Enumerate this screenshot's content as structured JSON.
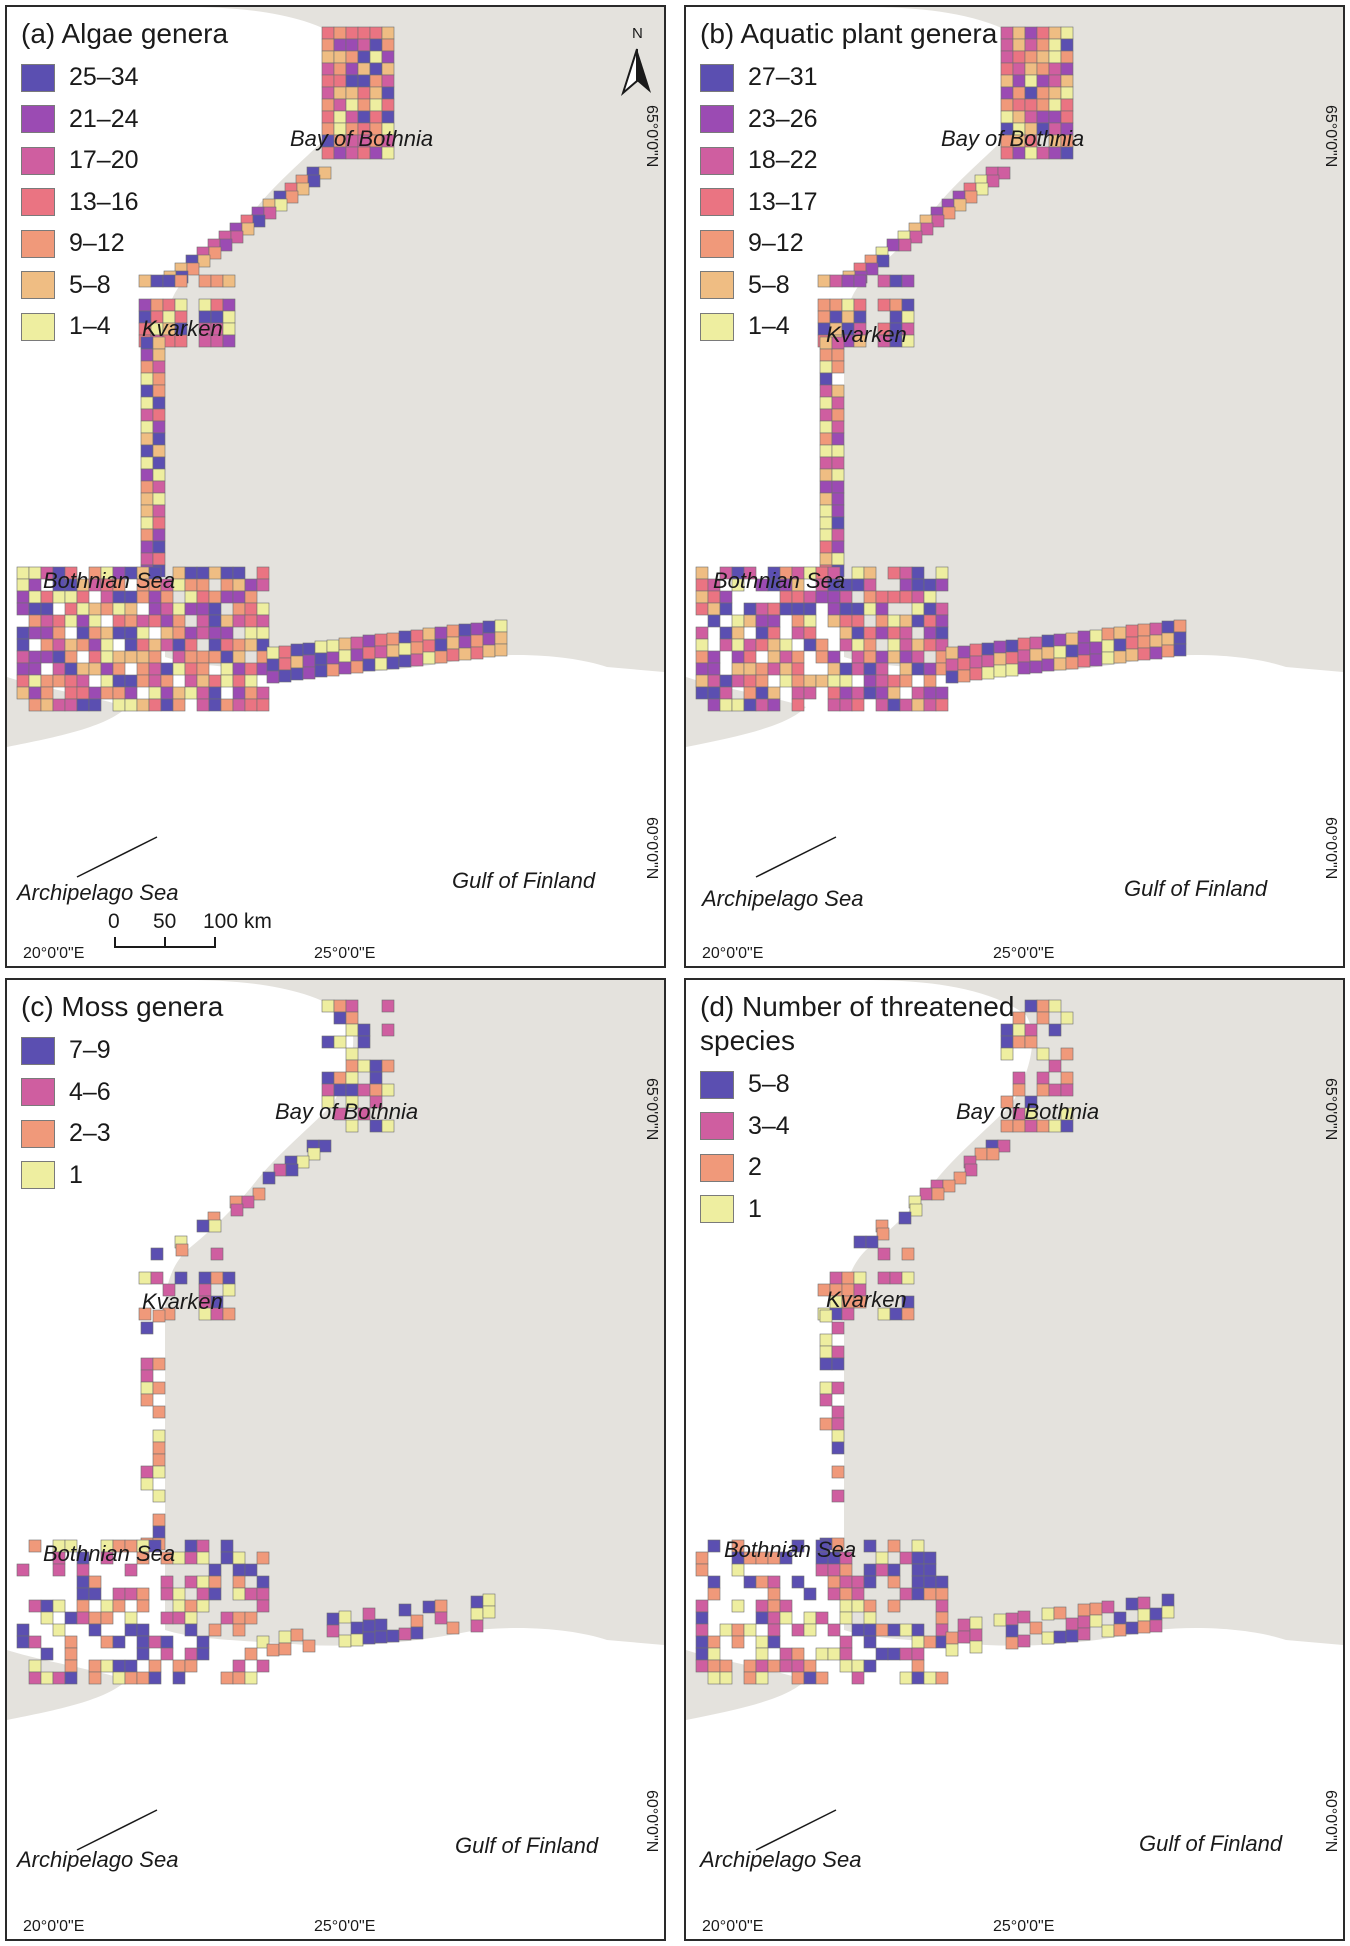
{
  "colors": {
    "land": "#e4e2dd",
    "water": "#ffffff",
    "cell_border": "#6e6e6e",
    "frame": "#2a2a2a"
  },
  "panels": [
    {
      "title": "(a) Algae genera",
      "legend": [
        {
          "label": "25–34",
          "color": "#5b4fb1"
        },
        {
          "label": "21–24",
          "color": "#9b4bb3"
        },
        {
          "label": "17–20",
          "color": "#cf5ea0"
        },
        {
          "label": "13–16",
          "color": "#ea7482"
        },
        {
          "label": "9–12",
          "color": "#f0997a"
        },
        {
          "label": "5–8",
          "color": "#efbd83"
        },
        {
          "label": "1–4",
          "color": "#eeeea0"
        }
      ],
      "labels": {
        "bay": "Bay of\nBothnia",
        "kvarken": "Kvarken",
        "bothnian": "Bothnian\nSea",
        "archipelago": "Archipelago\nSea",
        "gulf": "Gulf of Finland"
      },
      "coords": {
        "west": "20°0'0\"E",
        "east": "25°0'0\"E",
        "north": "65°0'0\"N",
        "south": "60°0'0\"N"
      },
      "scale_bar": {
        "ticks": [
          "0",
          "50",
          "100 km"
        ]
      },
      "north_arrow": {
        "label": "N"
      }
    },
    {
      "title": "(b) Aquatic plant genera",
      "legend": [
        {
          "label": "27–31",
          "color": "#5b4fb1"
        },
        {
          "label": "23–26",
          "color": "#9b4bb3"
        },
        {
          "label": "18–22",
          "color": "#cf5ea0"
        },
        {
          "label": "13–17",
          "color": "#ea7482"
        },
        {
          "label": "9–12",
          "color": "#f0997a"
        },
        {
          "label": "5–8",
          "color": "#efbd83"
        },
        {
          "label": "1–4",
          "color": "#eeeea0"
        }
      ],
      "labels": {
        "bay": "Bay of\nBothnia",
        "kvarken": "Kvarken",
        "bothnian": "Bothnian\nSea",
        "archipelago": "Archipelago\nSea",
        "gulf": "Gulf of Finland"
      },
      "coords": {
        "west": "20°0'0\"E",
        "east": "25°0'0\"E",
        "north": "65°0'0\"N",
        "south": "60°0'0\"N"
      }
    },
    {
      "title": "(c) Moss genera",
      "legend": [
        {
          "label": "7–9",
          "color": "#5b4fb1"
        },
        {
          "label": "4–6",
          "color": "#cf5ea0"
        },
        {
          "label": "2–3",
          "color": "#f0997a"
        },
        {
          "label": "1",
          "color": "#eeeea0"
        }
      ],
      "labels": {
        "bay": "Bay of\nBothnia",
        "kvarken": "Kvarken",
        "bothnian": "Bothnian\nSea",
        "archipelago": "Archipelago\nSea",
        "gulf": "Gulf of Finland"
      },
      "coords": {
        "west": "20°0'0\"E",
        "east": "25°0'0\"E",
        "north": "65°0'0\"N",
        "south": "60°0'0\"N"
      }
    },
    {
      "title": "(d) Number of threatened\nspecies",
      "legend": [
        {
          "label": "5–8",
          "color": "#5b4fb1"
        },
        {
          "label": "3–4",
          "color": "#cf5ea0"
        },
        {
          "label": "2",
          "color": "#f0997a"
        },
        {
          "label": "1",
          "color": "#eeeea0"
        }
      ],
      "labels": {
        "bay": "Bay of\nBothnia",
        "kvarken": "Kvarken",
        "bothnian": "Bothnian\nSea",
        "archipelago": "Archipelago\nSea",
        "gulf": "Gulf of Finland"
      },
      "coords": {
        "west": "20°0'0\"E",
        "east": "25°0'0\"E",
        "north": "65°0'0\"N",
        "south": "60°0'0\"N"
      }
    }
  ]
}
